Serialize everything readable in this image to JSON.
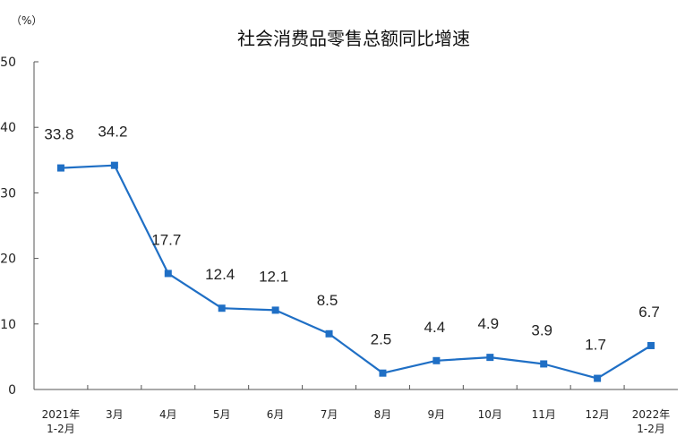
{
  "chart_data": {
    "type": "line",
    "title": "社会消费品零售总额同比增速",
    "unit": "（%）",
    "ylim": [
      0,
      50
    ],
    "yticks": [
      0,
      10,
      20,
      30,
      40,
      50
    ],
    "ytick_labels": [
      "0",
      "10",
      "20",
      "30",
      "40",
      "50"
    ],
    "categories": [
      [
        "2021年",
        "1-2月"
      ],
      [
        "3月"
      ],
      [
        "4月"
      ],
      [
        "5月"
      ],
      [
        "6月"
      ],
      [
        "7月"
      ],
      [
        "8月"
      ],
      [
        "9月"
      ],
      [
        "10月"
      ],
      [
        "11月"
      ],
      [
        "12月"
      ],
      [
        "2022年",
        "1-2月"
      ]
    ],
    "values": [
      33.8,
      34.2,
      17.7,
      12.4,
      12.1,
      8.5,
      2.5,
      4.4,
      4.9,
      3.9,
      1.7,
      6.7
    ],
    "data_labels": [
      "33.8",
      "34.2",
      "17.7",
      "12.4",
      "12.1",
      "8.5",
      "2.5",
      "4.4",
      "4.9",
      "3.9",
      "1.7",
      "6.7"
    ],
    "line_color": "#1f6fc5",
    "grid": false,
    "legend": "none"
  }
}
